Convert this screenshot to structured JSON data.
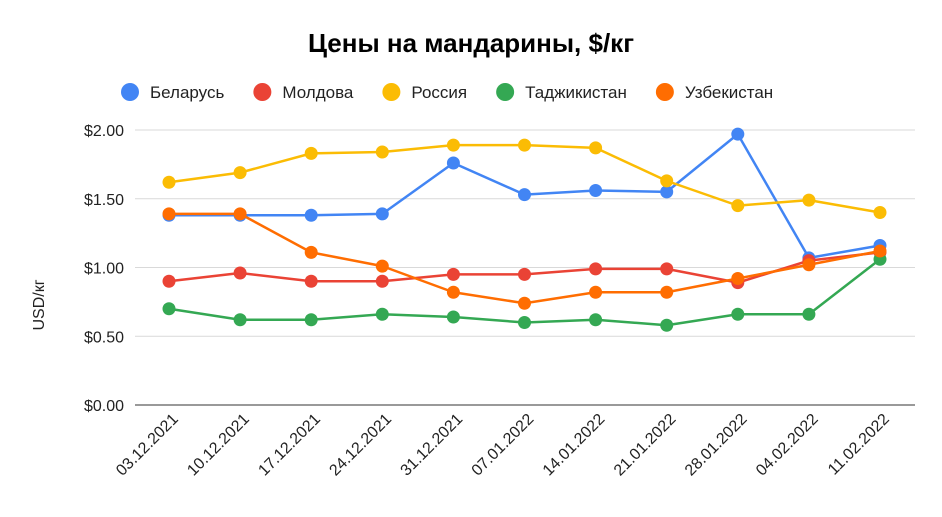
{
  "chart_data": {
    "type": "line",
    "title": "Цены на мандарины, $/кг",
    "ylabel": "USD/кг",
    "xlabel": "",
    "categories": [
      "03.12.2021",
      "10.12.2021",
      "17.12.2021",
      "24.12.2021",
      "31.12.2021",
      "07.01.2022",
      "14.01.2022",
      "21.01.2022",
      "28.01.2022",
      "04.02.2022",
      "11.02.2022"
    ],
    "ylim": [
      0,
      2
    ],
    "yticks": [
      0,
      0.5,
      1,
      1.5,
      2
    ],
    "ytick_labels": [
      "$0.00",
      "$0.50",
      "$1.00",
      "$1.50",
      "$2.00"
    ],
    "grid": true,
    "legend_position": "top",
    "series": [
      {
        "name": "Беларусь",
        "color": "#4285f4",
        "values": [
          1.38,
          1.38,
          1.38,
          1.39,
          1.76,
          1.53,
          1.56,
          1.55,
          1.97,
          1.07,
          1.16
        ]
      },
      {
        "name": "Молдова",
        "color": "#ea4335",
        "values": [
          0.9,
          0.96,
          0.9,
          0.9,
          0.95,
          0.95,
          0.99,
          0.99,
          0.89,
          1.05,
          1.11
        ]
      },
      {
        "name": "Россия",
        "color": "#fbbc04",
        "values": [
          1.62,
          1.69,
          1.83,
          1.84,
          1.89,
          1.89,
          1.87,
          1.63,
          1.45,
          1.49,
          1.4
        ]
      },
      {
        "name": "Таджикистан",
        "color": "#34a853",
        "values": [
          0.7,
          0.62,
          0.62,
          0.66,
          0.64,
          0.6,
          0.62,
          0.58,
          0.66,
          0.66,
          1.06
        ]
      },
      {
        "name": "Узбекистан",
        "color": "#ff6d01",
        "values": [
          1.39,
          1.39,
          1.11,
          1.01,
          0.82,
          0.74,
          0.82,
          0.82,
          0.92,
          1.02,
          1.12
        ]
      }
    ]
  }
}
